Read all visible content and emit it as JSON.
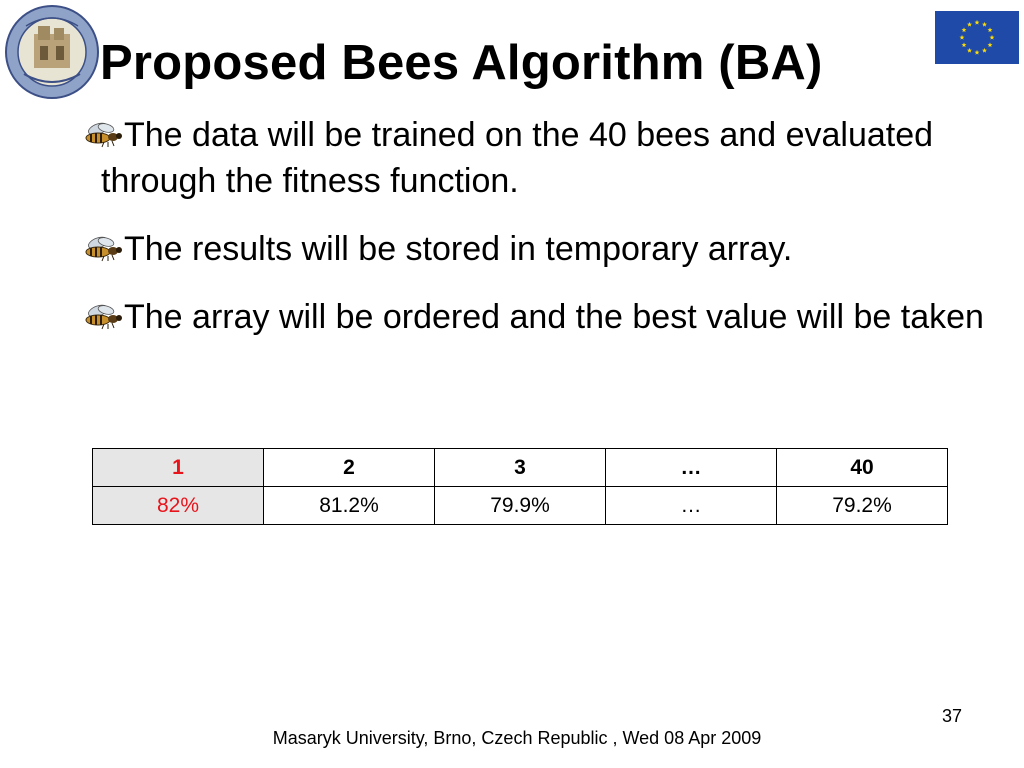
{
  "slide": {
    "title": "Proposed Bees Algorithm (BA)",
    "bullets": [
      "The data will be trained on the 40 bees and evaluated through the fitness function.",
      "The results will be stored in temporary array.",
      "The array will be ordered and the best value will be taken"
    ],
    "bullet_icon": "bee-icon",
    "logos": {
      "left": "university-of-aleppo-seal",
      "right": "eu-flag"
    }
  },
  "table": {
    "header": [
      "1",
      "2",
      "3",
      "…",
      "40"
    ],
    "values": [
      "82%",
      "81.2%",
      "79.9%",
      "…",
      "79.2%"
    ],
    "highlight_color": "#e8141b",
    "highlight_background": "#e6e6e6"
  },
  "footer": {
    "text": "Masaryk University, Brno, Czech Republic , Wed 08 Apr 2009",
    "page_number": "37"
  }
}
